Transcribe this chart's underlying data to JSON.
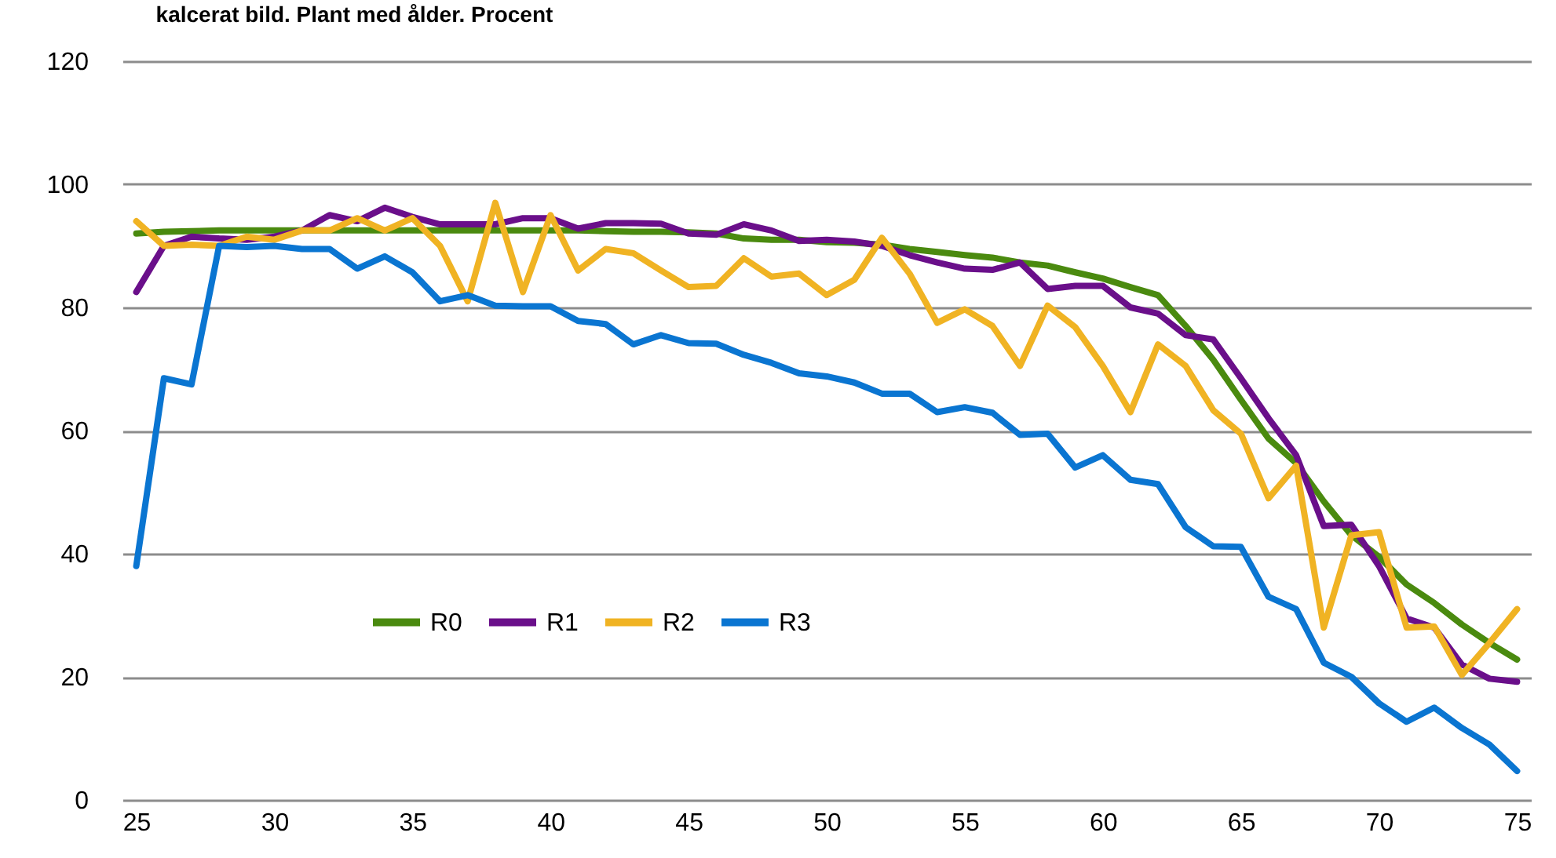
{
  "chart_data": {
    "type": "line",
    "title": "kalcerat bild. Plant med ålder. Procent",
    "x": [
      25,
      26,
      27,
      28,
      29,
      30,
      31,
      32,
      33,
      34,
      35,
      36,
      37,
      38,
      39,
      40,
      41,
      42,
      43,
      44,
      45,
      46,
      47,
      48,
      49,
      50,
      51,
      52,
      53,
      54,
      55,
      56,
      57,
      58,
      59,
      60,
      61,
      62,
      63,
      64,
      65,
      66,
      67,
      68,
      69,
      70,
      71,
      72,
      73,
      74,
      75
    ],
    "xlim": [
      24.5,
      75.5
    ],
    "xticks": [
      25,
      30,
      35,
      40,
      45,
      50,
      55,
      60,
      65,
      70,
      75
    ],
    "ylim": [
      0,
      120
    ],
    "yticks": [
      0,
      20,
      40,
      60,
      80,
      100,
      120
    ],
    "grid": "y",
    "legend": "bottom left",
    "marker": "none",
    "line_style": "solid",
    "series": [
      {
        "name": "R0",
        "color": "#4a8a0f",
        "values": [
          92,
          92.3,
          92.4,
          92.5,
          92.5,
          92.5,
          92.5,
          92.5,
          92.5,
          92.5,
          92.5,
          92.5,
          92.5,
          92.5,
          92.5,
          92.5,
          92.5,
          92.4,
          92.3,
          92.3,
          92.2,
          92,
          91.2,
          91,
          91,
          90.6,
          90.5,
          90.2,
          89.5,
          89,
          88.5,
          88.1,
          87.3,
          86.8,
          85.7,
          84.7,
          83.3,
          82,
          77,
          71.5,
          65,
          58.7,
          54.7,
          48.5,
          43,
          39.5,
          35,
          32,
          28.5,
          25.5,
          22.8
        ]
      },
      {
        "name": "R1",
        "color": "#6a0f8a",
        "values": [
          82.5,
          90,
          91.5,
          91.2,
          91,
          91.5,
          92.5,
          95,
          94,
          96.2,
          94.7,
          93.5,
          93.5,
          93.5,
          94.5,
          94.5,
          92.8,
          93.7,
          93.7,
          93.6,
          92,
          91.8,
          93.5,
          92.5,
          90.8,
          91,
          90.7,
          90,
          88.5,
          87.3,
          86.3,
          86.1,
          87.3,
          83,
          83.5,
          83.5,
          80,
          79,
          75.5,
          74.8,
          68.5,
          62,
          56,
          44.5,
          44.7,
          38,
          29.5,
          28,
          22,
          19.7,
          19.2
        ]
      },
      {
        "name": "R2",
        "color": "#f0b323",
        "values": [
          94,
          90,
          90.2,
          90,
          91.5,
          91,
          92.5,
          92.5,
          94.5,
          92.5,
          94.5,
          90,
          81,
          97,
          82.5,
          95,
          86,
          89.5,
          88.8,
          86,
          83.3,
          83.5,
          88,
          85,
          85.5,
          82,
          84.5,
          91.3,
          85.5,
          77.5,
          79.7,
          77,
          70.5,
          80.3,
          76.8,
          70.5,
          63,
          74,
          70.5,
          63.3,
          59.5,
          49,
          54.3,
          28,
          43,
          43.5,
          28,
          28.2,
          20.3,
          25.5,
          31
        ]
      },
      {
        "name": "R3",
        "color": "#0a75d1",
        "values": [
          38,
          68.5,
          67.5,
          90,
          89.8,
          90,
          89.5,
          89.5,
          86.3,
          88.3,
          85.7,
          81,
          82,
          80.3,
          80.2,
          80.2,
          77.8,
          77.3,
          74,
          75.5,
          74.2,
          74.1,
          72.3,
          71,
          69.3,
          68.8,
          67.8,
          66,
          66,
          63,
          63.8,
          62.9,
          59.3,
          59.5,
          54,
          56,
          52,
          51.3,
          44.3,
          41.2,
          41.1,
          33,
          31,
          22.3,
          20,
          15.7,
          12.7,
          15,
          11.7,
          9,
          4.7
        ]
      }
    ]
  }
}
